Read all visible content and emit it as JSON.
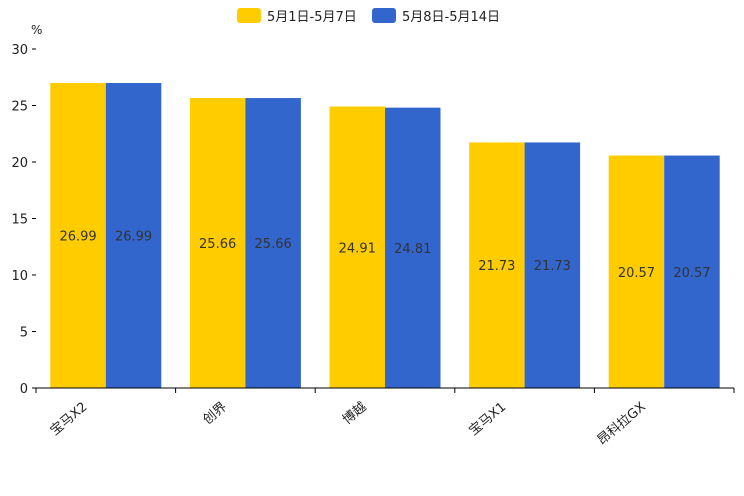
{
  "chart_data": {
    "type": "bar",
    "title": "",
    "xlabel": "",
    "ylabel": "%",
    "ylim": [
      0,
      30
    ],
    "yticks": [
      0,
      5,
      10,
      15,
      20,
      25,
      30
    ],
    "grid": false,
    "legend_position": "top-center",
    "categories": [
      "宝马X2",
      "创界",
      "博越",
      "宝马X1",
      "昂科拉GX"
    ],
    "series": [
      {
        "name": "5月1日-5月7日",
        "color": "#FFCC00",
        "values": [
          26.99,
          25.66,
          24.91,
          21.73,
          20.57
        ],
        "labels": [
          "26.99",
          "25.66",
          "24.91",
          "21.73",
          "20.57"
        ]
      },
      {
        "name": "5月8日-5月14日",
        "color": "#3366CC",
        "values": [
          26.99,
          25.66,
          24.81,
          21.73,
          20.57
        ],
        "labels": [
          "26.99",
          "25.66",
          "24.81",
          "21.73",
          "20.57"
        ]
      }
    ]
  }
}
